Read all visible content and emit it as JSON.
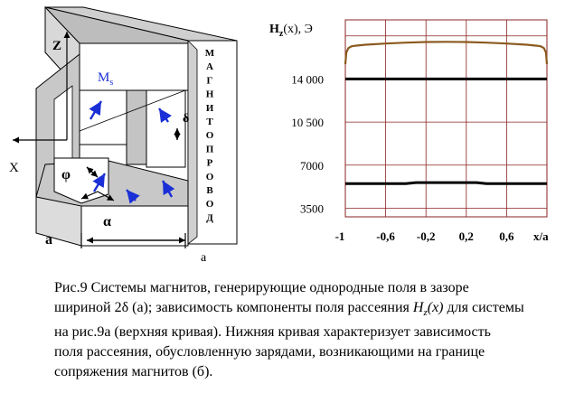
{
  "figure_a": {
    "label_z": "Z",
    "label_ms": "M",
    "label_ms_sub": "s",
    "label_x": "X",
    "label_phi": "φ",
    "label_delta": "δ",
    "label_alpha": "α",
    "label_a_left": "а",
    "label_a_bottom": "а",
    "magnetoprovod_letters": [
      "М",
      "А",
      "Г",
      "Н",
      "И",
      "Т",
      "О",
      "П",
      "Р",
      "О",
      "В",
      "О",
      "Д"
    ]
  },
  "chart_data": {
    "type": "line",
    "ylabel_main": "H",
    "ylabel_sub": "z",
    "ylabel_rest": "(x), Э",
    "xlabel": "x/a",
    "x_ticks": [
      "-1",
      "-0,6",
      "-0,2",
      "0,2",
      "0,6"
    ],
    "y_ticks": [
      "14 000",
      "10 500",
      "7000",
      "3500"
    ],
    "xlim": [
      -1,
      1
    ],
    "ylim": [
      2800,
      18800
    ],
    "grid": true,
    "series": [
      {
        "color": "#8b5a1e",
        "x": [
          -1,
          -0.99,
          -0.97,
          -0.94,
          -0.9,
          -0.8,
          -0.6,
          -0.4,
          -0.2,
          0,
          0.2,
          0.4,
          0.6,
          0.8,
          0.9,
          0.94,
          0.97,
          0.99,
          1
        ],
        "y": [
          15200,
          16150,
          16500,
          16650,
          16700,
          16780,
          16880,
          16950,
          17000,
          17020,
          17000,
          16950,
          16880,
          16780,
          16700,
          16650,
          16500,
          16150,
          15200
        ]
      },
      {
        "color": "#000000",
        "x": [
          -1,
          1
        ],
        "y": [
          14000,
          14000
        ]
      },
      {
        "color": "#000000",
        "x": [
          -1,
          -0.4,
          -0.3,
          0.3,
          0.4,
          1
        ],
        "y": [
          5500,
          5500,
          5580,
          5580,
          5500,
          5500
        ]
      }
    ]
  },
  "caption": {
    "line1": "Рис.9  Системы магнитов, генерирующие однородные поля в зазоре",
    "line2_pre": "шириной 2δ (а); зависимость компоненты поля рассеяния ",
    "line2_ital": "H",
    "line2_sub": "z",
    "line2_ital2": "(x)",
    "line2_post": " для системы",
    "line3": "на рис.9а (верхняя кривая). Нижняя кривая характеризует зависимость",
    "line4": "поля   рассеяния, обусловленную зарядами, возникающими на границе",
    "line5": "сопряжения магнитов (б)."
  }
}
